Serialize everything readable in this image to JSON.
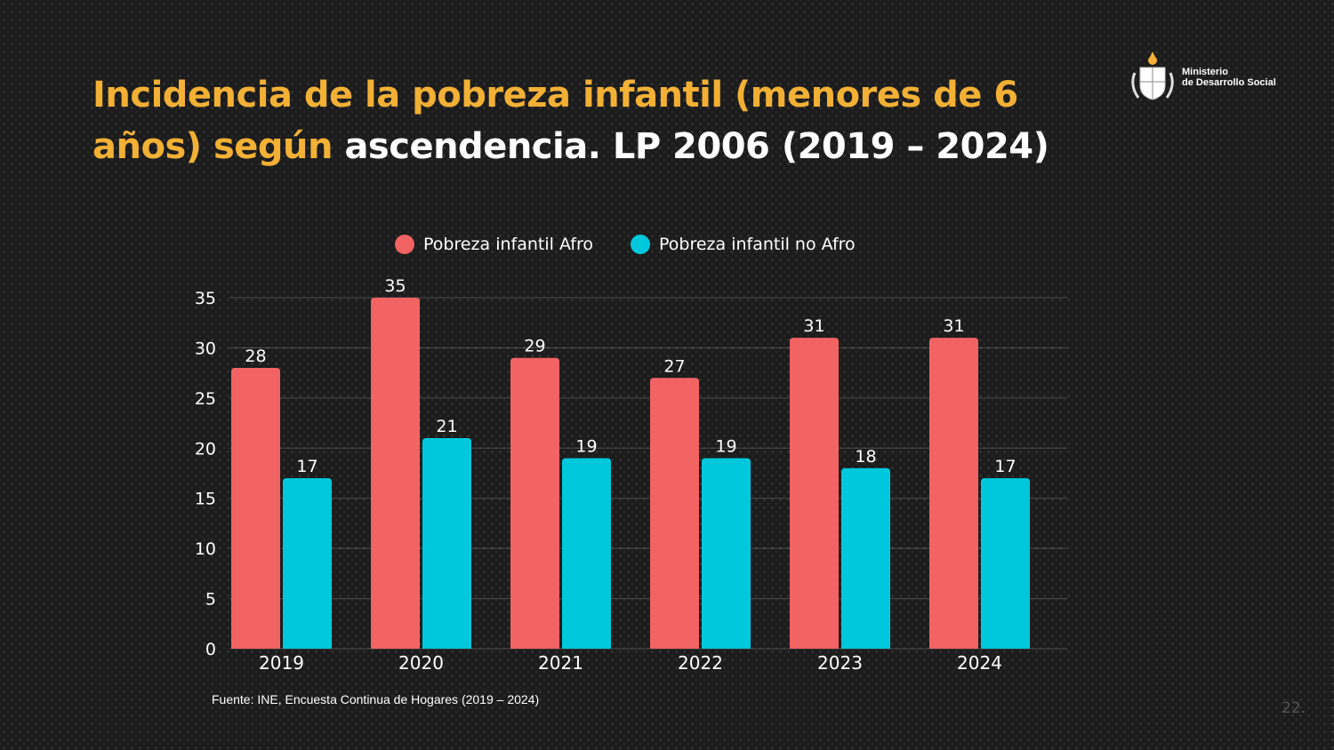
{
  "title": {
    "part_highlight": "Incidencia de la pobreza infantil (menores de 6 años) según",
    "part_white": "ascendencia. LP 2006 (2019 – 2024)"
  },
  "logo": {
    "line1": "Ministerio",
    "line2": "de Desarrollo Social"
  },
  "colors": {
    "title_accent": "#f2b035",
    "afro": "#f26363",
    "no_afro": "#00c8dc"
  },
  "chart_data": {
    "type": "bar",
    "categories": [
      "2019",
      "2020",
      "2021",
      "2022",
      "2023",
      "2024"
    ],
    "series": [
      {
        "name": "Pobreza infantil Afro",
        "color": "#f26363",
        "values": [
          28,
          35,
          29,
          27,
          31,
          31
        ]
      },
      {
        "name": "Pobreza infantil no Afro",
        "color": "#00c8dc",
        "values": [
          17,
          21,
          19,
          19,
          18,
          17
        ]
      }
    ],
    "yticks": [
      "0",
      "5",
      "10",
      "15",
      "20",
      "25",
      "30",
      "35"
    ],
    "ylim": [
      0,
      35
    ],
    "grid": true,
    "legend": "top-center"
  },
  "source": "Fuente: INE, Encuesta Continua de Hogares (2019 – 2024)",
  "page_number": "22."
}
